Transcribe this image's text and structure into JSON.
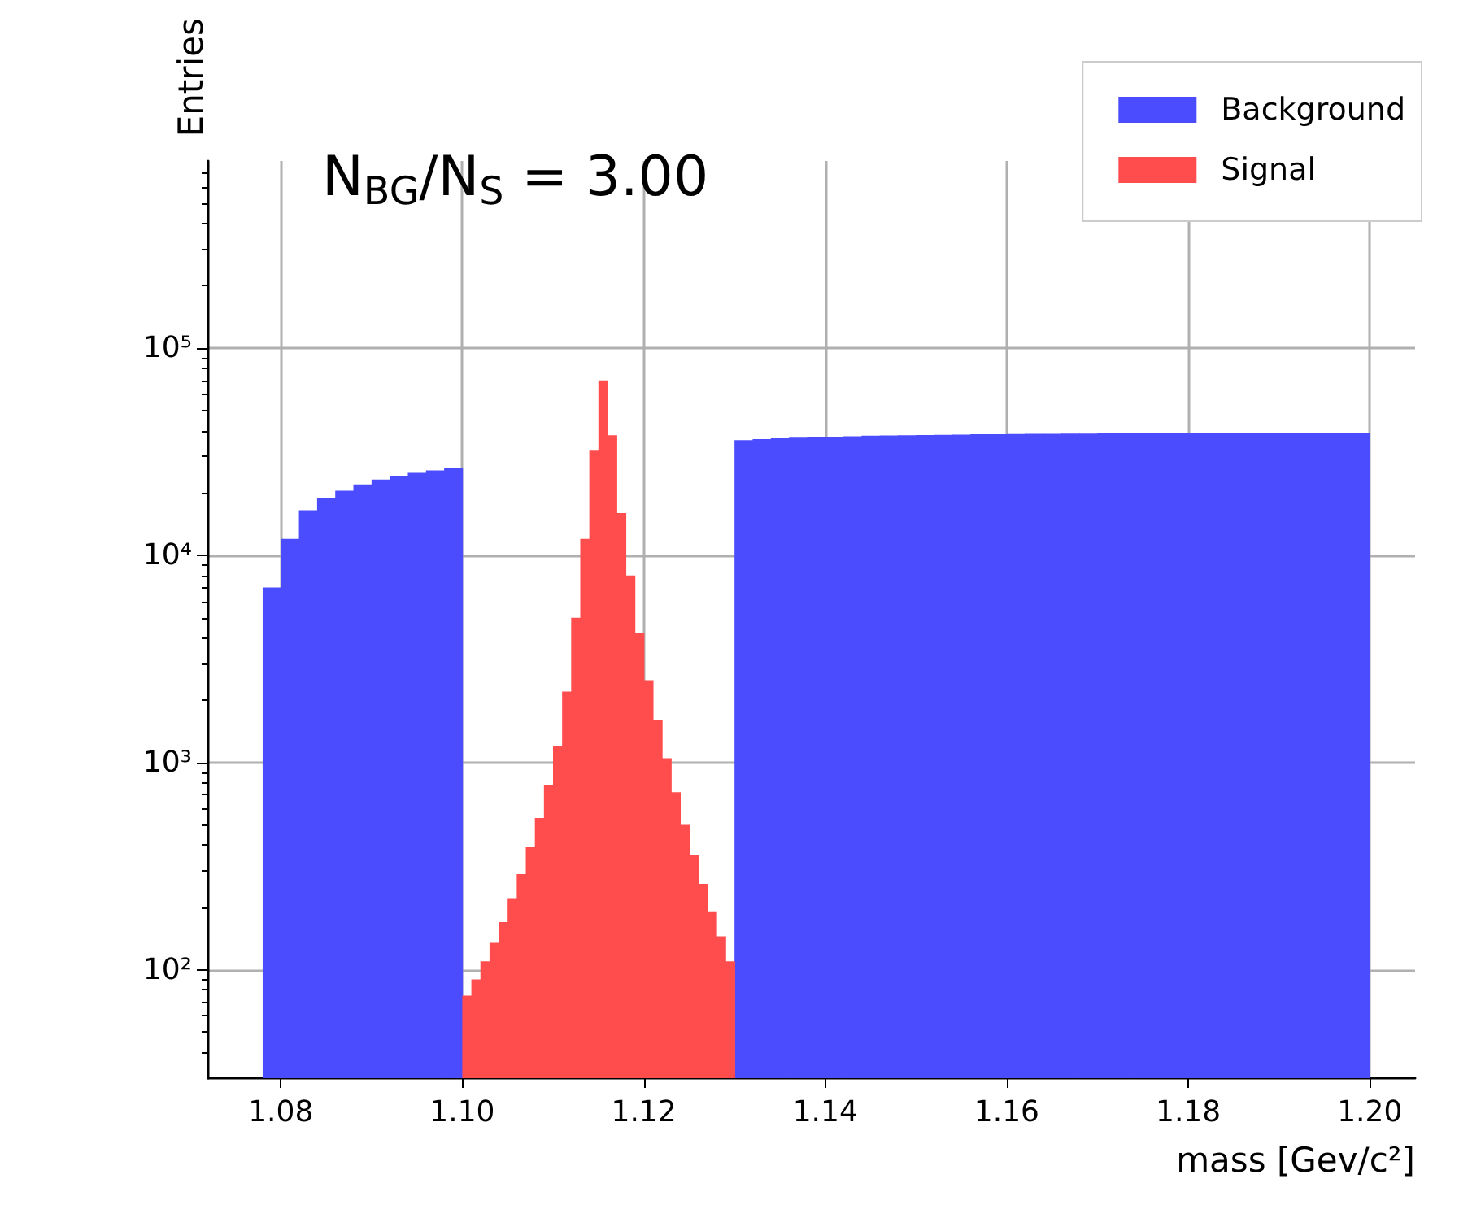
{
  "chart_data": {
    "type": "histogram",
    "xlabel": "mass [Gev/c²]",
    "ylabel": "Entries",
    "log": "y",
    "grid": true,
    "legend": "top right",
    "annotations": [
      "N$_{BG}$/N$_{S}$ = 3.00"
    ],
    "xlim": [
      1.072,
      1.205
    ],
    "ylim": [
      30,
      800000
    ],
    "xticks": [
      {
        "value": 1.08,
        "label": "1.08"
      },
      {
        "value": 1.1,
        "label": "1.10"
      },
      {
        "value": 1.12,
        "label": "1.12"
      },
      {
        "value": 1.14,
        "label": "1.14"
      },
      {
        "value": 1.16,
        "label": "1.16"
      },
      {
        "value": 1.18,
        "label": "1.18"
      },
      {
        "value": 1.2,
        "label": "1.20"
      }
    ],
    "yticks": [
      {
        "value": 100,
        "label": "10²"
      },
      {
        "value": 1000,
        "label": "10³"
      },
      {
        "value": 10000,
        "label": "10⁴"
      },
      {
        "value": 100000,
        "label": "10⁵"
      }
    ],
    "bins": [
      1.078,
      1.08,
      1.082,
      1.084,
      1.086,
      1.088,
      1.09,
      1.092,
      1.094,
      1.096,
      1.098,
      1.1,
      1.101,
      1.102,
      1.103,
      1.104,
      1.105,
      1.106,
      1.107,
      1.108,
      1.109,
      1.11,
      1.111,
      1.112,
      1.113,
      1.114,
      1.115,
      1.116,
      1.117,
      1.118,
      1.119,
      1.12,
      1.121,
      1.122,
      1.123,
      1.124,
      1.125,
      1.126,
      1.127,
      1.128,
      1.129,
      1.13,
      1.132,
      1.134,
      1.136,
      1.138,
      1.14,
      1.142,
      1.144,
      1.146,
      1.148,
      1.15,
      1.152,
      1.154,
      1.156,
      1.158,
      1.16,
      1.162,
      1.164,
      1.166,
      1.168,
      1.17,
      1.172,
      1.174,
      1.176,
      1.178,
      1.18,
      1.182,
      1.184,
      1.186,
      1.188,
      1.19,
      1.192,
      1.194,
      1.196,
      1.198,
      1.2
    ],
    "series": [
      {
        "name": "Background",
        "color": "#4c4cff",
        "values": [
          7000,
          12000,
          16500,
          19000,
          20500,
          22000,
          23200,
          24200,
          25000,
          25700,
          26300,
          null,
          null,
          null,
          null,
          null,
          null,
          null,
          null,
          null,
          null,
          null,
          null,
          null,
          null,
          null,
          null,
          null,
          null,
          null,
          null,
          null,
          null,
          null,
          null,
          null,
          null,
          null,
          null,
          null,
          null,
          36000,
          36400,
          36700,
          37000,
          37200,
          37400,
          37600,
          37800,
          37900,
          38000,
          38100,
          38200,
          38300,
          38400,
          38400,
          38500,
          38600,
          38600,
          38700,
          38700,
          38800,
          38800,
          38800,
          38900,
          38900,
          38900,
          39000,
          39000,
          39000,
          39000,
          39000,
          39000,
          39000,
          39000,
          39000
        ]
      },
      {
        "name": "Signal",
        "color": "#ff4c4c",
        "values": [
          null,
          null,
          null,
          null,
          null,
          null,
          null,
          null,
          null,
          null,
          null,
          75,
          90,
          110,
          135,
          170,
          220,
          290,
          390,
          540,
          780,
          1200,
          2200,
          5000,
          12000,
          32000,
          70000,
          38000,
          16000,
          8000,
          4200,
          2500,
          1600,
          1050,
          720,
          500,
          360,
          260,
          190,
          145,
          110,
          null,
          null,
          null,
          null,
          null,
          null,
          null,
          null,
          null,
          null,
          null,
          null,
          null,
          null,
          null,
          null,
          null,
          null,
          null,
          null,
          null,
          null,
          null,
          null,
          null,
          null,
          null,
          null,
          null,
          null,
          null,
          null,
          null,
          null,
          null
        ]
      }
    ]
  }
}
